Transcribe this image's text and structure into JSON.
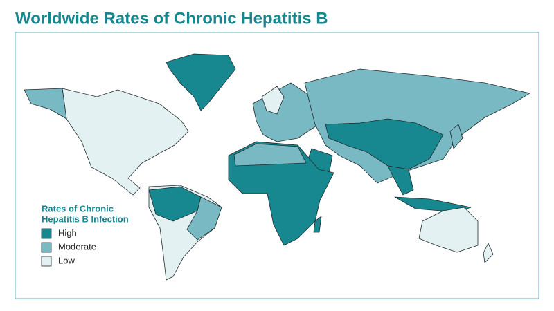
{
  "header": {
    "title": "Worldwide Rates of Chronic Hepatitis B"
  },
  "legend": {
    "title_lines": [
      "Rates of Chronic",
      "Hepatitis B Infection"
    ],
    "items": [
      {
        "label": "High",
        "color": "#17888f"
      },
      {
        "label": "Moderate",
        "color": "#79b9c3"
      },
      {
        "label": "Low",
        "color": "#e3f1f3"
      }
    ]
  }
}
